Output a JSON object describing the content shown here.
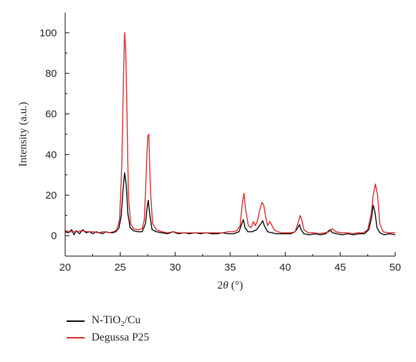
{
  "chart_data": {
    "type": "line",
    "xlabel_prefix": "2",
    "xlabel_var": "θ",
    "xlabel_unit": " (°)",
    "ylabel": "Intensity (a.u.)",
    "xlim": [
      20,
      50
    ],
    "ylim": [
      -10,
      110
    ],
    "xticks": [
      20,
      25,
      30,
      35,
      40,
      45,
      50
    ],
    "yticks": [
      0,
      20,
      40,
      60,
      80,
      100
    ],
    "grid": false,
    "legend_position": "bottom-left",
    "series": [
      {
        "name": "N-TiO2/Cu",
        "name_main": "N-TiO",
        "name_sub": "2",
        "name_tail": "/Cu",
        "color": "#000000",
        "x": [
          20,
          20.3,
          20.6,
          20.8,
          21.0,
          21.3,
          21.6,
          21.9,
          22.2,
          22.5,
          22.8,
          23.1,
          23.4,
          23.7,
          24.0,
          24.3,
          24.6,
          24.9,
          25.1,
          25.25,
          25.4,
          25.55,
          25.7,
          25.9,
          26.2,
          26.6,
          27.0,
          27.3,
          27.45,
          27.55,
          27.7,
          27.9,
          28.3,
          28.8,
          29.3,
          29.8,
          30.3,
          30.8,
          31.3,
          31.8,
          32.3,
          32.8,
          33.3,
          33.8,
          34.3,
          34.8,
          35.3,
          35.8,
          36.05,
          36.2,
          36.35,
          36.6,
          37.0,
          37.4,
          37.8,
          37.95,
          38.1,
          38.4,
          38.8,
          39.2,
          39.6,
          40.0,
          40.5,
          40.9,
          41.15,
          41.3,
          41.45,
          41.7,
          42.2,
          42.7,
          43.2,
          43.7,
          43.95,
          44.1,
          44.3,
          44.7,
          45.2,
          45.7,
          46.2,
          46.7,
          47.2,
          47.6,
          47.85,
          48.0,
          48.15,
          48.35,
          48.6,
          49.0,
          49.5,
          50.0
        ],
        "y": [
          2,
          1.5,
          3,
          0.5,
          2.5,
          1,
          3,
          1.5,
          2,
          1,
          2,
          1.5,
          1,
          2,
          1.5,
          1.5,
          2,
          4,
          10,
          22,
          31,
          25,
          11,
          4,
          2.5,
          2,
          2,
          6,
          14,
          17.5,
          10,
          3,
          2,
          1.5,
          1,
          2,
          1,
          1.5,
          1,
          1.5,
          1,
          1.5,
          1,
          1,
          1.5,
          1,
          1,
          2,
          6,
          8,
          4,
          2,
          2,
          3,
          6,
          7.5,
          5,
          2,
          1.5,
          1,
          1,
          1,
          1,
          2,
          4,
          5.5,
          3,
          1,
          0.5,
          1,
          0.5,
          1,
          2.5,
          3,
          1.5,
          1,
          0.5,
          1,
          0.5,
          1,
          1,
          3,
          9,
          15,
          12,
          4,
          1.5,
          0.5,
          1,
          0.5
        ]
      },
      {
        "name": "Degussa P25",
        "color": "#d62728",
        "x": [
          20,
          20.5,
          21.0,
          21.5,
          22.0,
          22.5,
          23.0,
          23.5,
          24.0,
          24.4,
          24.7,
          24.95,
          25.15,
          25.3,
          25.4,
          25.5,
          25.6,
          25.75,
          25.95,
          26.2,
          26.6,
          27.0,
          27.2,
          27.35,
          27.5,
          27.6,
          27.75,
          27.95,
          28.3,
          28.8,
          29.3,
          29.8,
          30.3,
          30.8,
          31.3,
          31.8,
          32.3,
          32.8,
          33.3,
          33.8,
          34.3,
          34.8,
          35.2,
          35.6,
          35.9,
          36.1,
          36.25,
          36.4,
          36.65,
          36.9,
          37.1,
          37.3,
          37.5,
          37.7,
          37.9,
          38.05,
          38.2,
          38.4,
          38.6,
          38.8,
          39.0,
          39.3,
          39.7,
          40.1,
          40.5,
          40.9,
          41.15,
          41.35,
          41.5,
          41.7,
          42.1,
          42.6,
          43.1,
          43.6,
          44.0,
          44.3,
          44.6,
          45.1,
          45.6,
          46.1,
          46.6,
          47.1,
          47.5,
          47.8,
          48.0,
          48.2,
          48.4,
          48.6,
          48.9,
          49.3,
          49.7,
          50.0
        ],
        "y": [
          2.5,
          2,
          2,
          2.5,
          2,
          2,
          1.5,
          2,
          1.5,
          2,
          3,
          8,
          35,
          78,
          100,
          92,
          65,
          20,
          6,
          3.5,
          3,
          3.5,
          8,
          28,
          49,
          50,
          22,
          6,
          3,
          2,
          1.5,
          2,
          1.5,
          1.5,
          1.5,
          1.5,
          1.5,
          1.5,
          1.5,
          1.5,
          1.5,
          2,
          2,
          2.5,
          5,
          16,
          21,
          13,
          5,
          4,
          7,
          5,
          8,
          13,
          16.5,
          15,
          10,
          5,
          7,
          5,
          3,
          2,
          1.5,
          1.5,
          1.5,
          2,
          6,
          10,
          8,
          3,
          1.5,
          1.5,
          1,
          1.5,
          2,
          3.5,
          2,
          1.5,
          1.5,
          1,
          1.5,
          1.5,
          3,
          10,
          20,
          25.5,
          20,
          6,
          2,
          1.5,
          1.5,
          1.5
        ]
      }
    ]
  }
}
